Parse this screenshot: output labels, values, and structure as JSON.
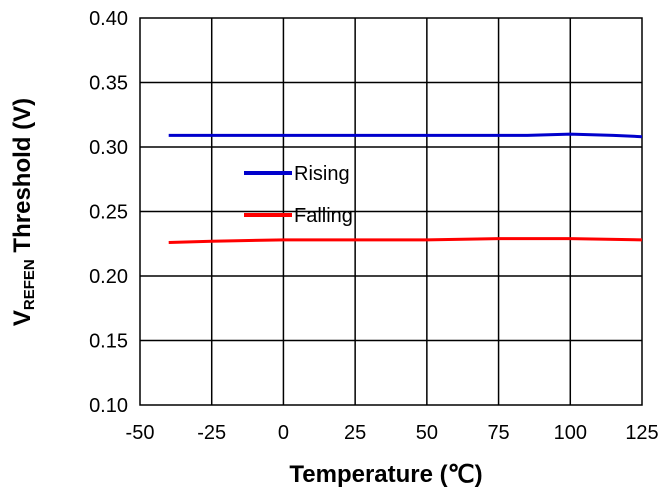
{
  "chart_data": {
    "type": "line",
    "title": "",
    "xlabel": "Temperature (℃)",
    "ylabel_main": "V",
    "ylabel_sub": "REFEN",
    "ylabel_rest": " Threshold (V)",
    "xlim": [
      -50,
      125
    ],
    "ylim": [
      0.1,
      0.4
    ],
    "xticks": [
      -50,
      -25,
      0,
      25,
      50,
      75,
      100,
      125
    ],
    "yticks": [
      0.1,
      0.15,
      0.2,
      0.25,
      0.3,
      0.35,
      0.4
    ],
    "xtick_labels": [
      "-50",
      "-25",
      "0",
      "25",
      "50",
      "75",
      "100",
      "125"
    ],
    "ytick_labels": [
      "0.10",
      "0.15",
      "0.20",
      "0.25",
      "0.30",
      "0.35",
      "0.40"
    ],
    "grid": true,
    "legend_position": "center-left",
    "series": [
      {
        "name": "Rising",
        "color": "#0000cc",
        "x": [
          -40,
          -25,
          0,
          25,
          50,
          75,
          85,
          100,
          115,
          125
        ],
        "y": [
          0.309,
          0.309,
          0.309,
          0.309,
          0.309,
          0.309,
          0.309,
          0.31,
          0.309,
          0.308
        ]
      },
      {
        "name": "Falling",
        "color": "#ff0000",
        "x": [
          -40,
          -25,
          0,
          25,
          50,
          75,
          100,
          125
        ],
        "y": [
          0.226,
          0.227,
          0.228,
          0.228,
          0.228,
          0.229,
          0.229,
          0.228
        ]
      }
    ]
  }
}
